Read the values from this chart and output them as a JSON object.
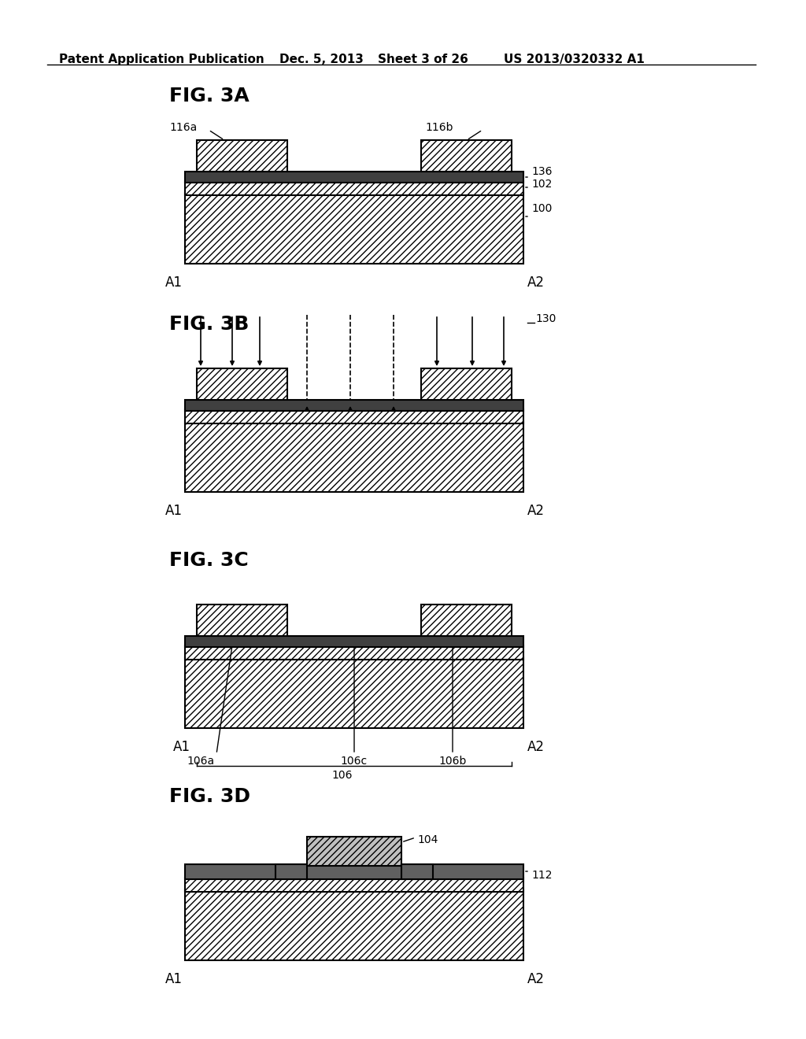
{
  "bg_color": "#ffffff",
  "header_text": "Patent Application Publication",
  "header_date": "Dec. 5, 2013",
  "header_sheet": "Sheet 3 of 26",
  "header_patent": "US 2013/0320332 A1",
  "figures": [
    "FIG. 3A",
    "FIG. 3B",
    "FIG. 3C",
    "FIG. 3D"
  ],
  "hatch_pattern": "////",
  "line_color": "#000000",
  "fill_color": "#ffffff",
  "hatch_color": "#000000"
}
